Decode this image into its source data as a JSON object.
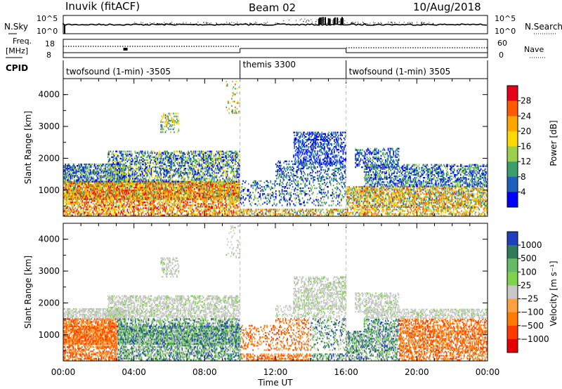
{
  "header": {
    "station": "Inuvik (fitACF)",
    "beam": "Beam 02",
    "date": "10/Aug/2018"
  },
  "noise_panel": {
    "left_label": "N.Sky",
    "right_label": "N.Search",
    "left_ticks": [
      "10^5",
      "10^0"
    ],
    "right_ticks": [
      "10^5",
      "10^0"
    ]
  },
  "freq_panel": {
    "left_label_1": "Freq.",
    "left_label_2": "[MHz]",
    "right_label": "Nave",
    "left_ticks": [
      "18",
      "8"
    ],
    "right_ticks": [
      "60",
      "0"
    ]
  },
  "cpid": {
    "label": "CPID",
    "segments": [
      {
        "text": "twofsound (1-min) -3505",
        "start_hour": 0,
        "end_hour": 10
      },
      {
        "text": "themis 3300",
        "start_hour": 10,
        "end_hour": 16
      },
      {
        "text": "twofsound (1-min) 3505",
        "start_hour": 16,
        "end_hour": 24
      }
    ]
  },
  "chart_data": [
    {
      "type": "heatmap",
      "name": "power",
      "ylabel": "Slant Range [km]",
      "xlabel": "Time UT",
      "xlim": [
        0,
        24
      ],
      "ylim": [
        180,
        4500
      ],
      "yticks": [
        "1000",
        "2000",
        "3000",
        "4000"
      ],
      "xticks": [
        "00:00",
        "04:00",
        "08:00",
        "12:00",
        "16:00",
        "20:00",
        "00:00"
      ],
      "colorbar": {
        "label": "Power [dB]",
        "ticks": [
          "28",
          "24",
          "20",
          "16",
          "12",
          "8",
          "4"
        ],
        "colors": [
          "#e6001a",
          "#ff5a00",
          "#ffa500",
          "#ffd800",
          "#9bd14a",
          "#3a9e6a",
          "#1f5fbf",
          "#0000ff"
        ]
      }
    },
    {
      "type": "heatmap",
      "name": "velocity",
      "ylabel": "Slant Range [km]",
      "xlabel": "Time UT",
      "xlim": [
        0,
        24
      ],
      "ylim": [
        180,
        4500
      ],
      "yticks": [
        "1000",
        "2000",
        "3000",
        "4000"
      ],
      "xticks": [
        "00:00",
        "04:00",
        "08:00",
        "12:00",
        "16:00",
        "20:00",
        "00:00"
      ],
      "colorbar": {
        "label": "Velocity [m s⁻¹]",
        "ticks": [
          "1000",
          "500",
          "100",
          "25",
          "−25",
          "−100",
          "−500",
          "−1000"
        ],
        "colors": [
          "#1f3fbf",
          "#2e7d5a",
          "#66bb66",
          "#7fd34a",
          "#c8c8c8",
          "#ffa040",
          "#ff7a00",
          "#ff3a00",
          "#e60000"
        ]
      }
    }
  ],
  "time_label": "Time UT"
}
